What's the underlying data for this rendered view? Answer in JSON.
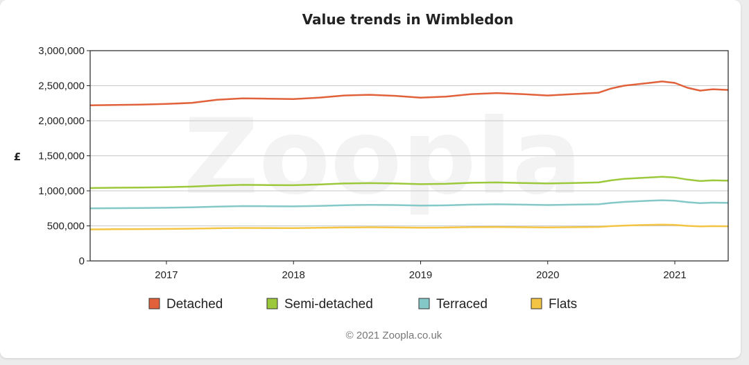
{
  "chart_data": {
    "type": "line",
    "title": "Value trends in Wimbledon",
    "ylabel": "£",
    "xlabel": "",
    "ylim": [
      0,
      3000000
    ],
    "yticks": [
      0,
      500000,
      1000000,
      1500000,
      2000000,
      2500000,
      3000000
    ],
    "ytick_labels": [
      "0",
      "500,000",
      "1,000,000",
      "1,500,000",
      "2,000,000",
      "2,500,000",
      "3,000,000"
    ],
    "xlim": [
      2016.4,
      2021.42
    ],
    "xticks": [
      2017,
      2018,
      2019,
      2020,
      2021
    ],
    "xtick_labels": [
      "2017",
      "2018",
      "2019",
      "2020",
      "2021"
    ],
    "grid": true,
    "legend_position": "bottom",
    "watermark": "Zoopla",
    "x": [
      2016.4,
      2016.6,
      2016.8,
      2017.0,
      2017.2,
      2017.4,
      2017.6,
      2017.8,
      2018.0,
      2018.2,
      2018.4,
      2018.6,
      2018.8,
      2019.0,
      2019.2,
      2019.4,
      2019.6,
      2019.8,
      2020.0,
      2020.2,
      2020.4,
      2020.5,
      2020.6,
      2020.7,
      2020.8,
      2020.9,
      2021.0,
      2021.1,
      2021.2,
      2021.3,
      2021.42
    ],
    "series": [
      {
        "name": "Detached",
        "color": "#e0613a",
        "values": [
          2220000,
          2225000,
          2230000,
          2240000,
          2255000,
          2300000,
          2320000,
          2315000,
          2310000,
          2330000,
          2360000,
          2370000,
          2355000,
          2330000,
          2345000,
          2380000,
          2395000,
          2380000,
          2360000,
          2380000,
          2400000,
          2460000,
          2500000,
          2520000,
          2540000,
          2560000,
          2540000,
          2470000,
          2430000,
          2450000,
          2440000
        ]
      },
      {
        "name": "Semi-detached",
        "color": "#9cc93b",
        "values": [
          1040000,
          1045000,
          1048000,
          1052000,
          1060000,
          1075000,
          1085000,
          1082000,
          1080000,
          1090000,
          1105000,
          1110000,
          1105000,
          1095000,
          1100000,
          1115000,
          1120000,
          1112000,
          1105000,
          1112000,
          1120000,
          1150000,
          1170000,
          1180000,
          1190000,
          1200000,
          1190000,
          1160000,
          1140000,
          1150000,
          1145000
        ]
      },
      {
        "name": "Terraced",
        "color": "#85c8c8",
        "values": [
          750000,
          752000,
          754000,
          758000,
          765000,
          775000,
          782000,
          780000,
          778000,
          785000,
          795000,
          800000,
          797000,
          790000,
          793000,
          803000,
          808000,
          803000,
          797000,
          803000,
          808000,
          828000,
          842000,
          850000,
          858000,
          865000,
          858000,
          838000,
          825000,
          832000,
          828000
        ]
      },
      {
        "name": "Flats",
        "color": "#f4c544",
        "values": [
          450000,
          452000,
          454000,
          456000,
          460000,
          466000,
          470000,
          469000,
          467000,
          472000,
          477000,
          480000,
          478000,
          474000,
          476000,
          482000,
          484000,
          481000,
          477000,
          481000,
          485000,
          496000,
          504000,
          510000,
          514000,
          518000,
          514000,
          500000,
          492000,
          496000,
          494000
        ]
      }
    ]
  },
  "credit": "© 2021  Zoopla.co.uk"
}
